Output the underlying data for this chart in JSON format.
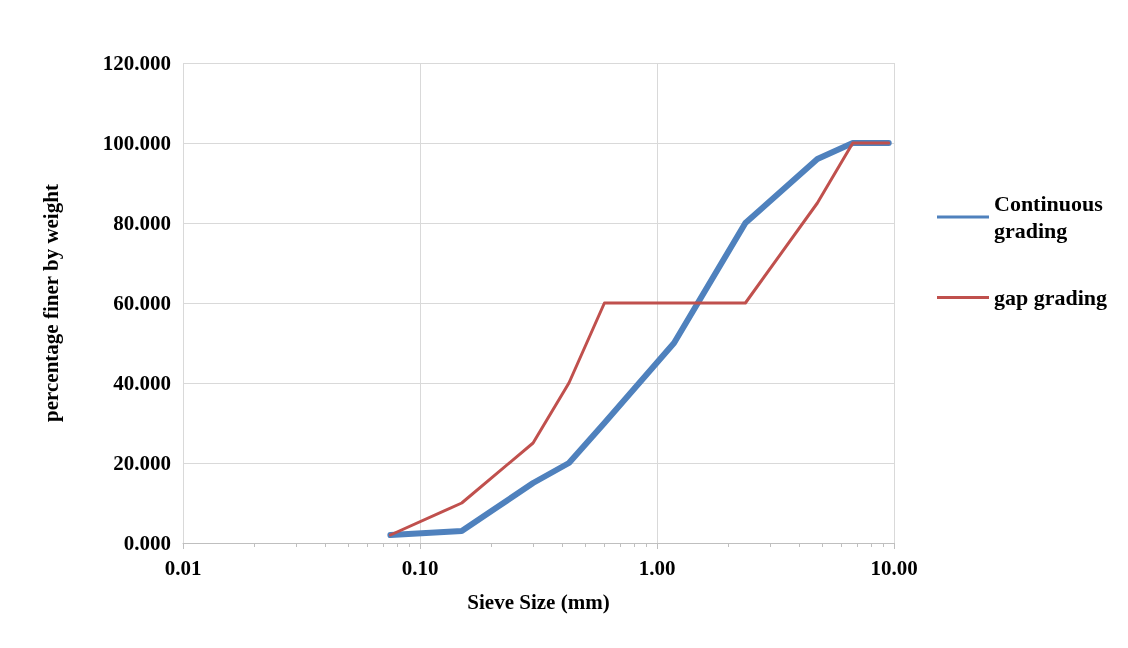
{
  "chart_data": {
    "type": "line",
    "xlabel": "Sieve Size (mm)",
    "ylabel": "percentage finer by weight",
    "log": "x",
    "xlim": [
      0.01,
      10
    ],
    "xticks": [
      {
        "value": 0.01,
        "label": "0.01"
      },
      {
        "value": 0.1,
        "label": "0.10"
      },
      {
        "value": 1,
        "label": "1.00"
      },
      {
        "value": 10,
        "label": "10.00"
      }
    ],
    "ylim": [
      0,
      120
    ],
    "yticks": [
      {
        "value": 0,
        "label": "0.000"
      },
      {
        "value": 20,
        "label": "20.000"
      },
      {
        "value": 40,
        "label": "40.000"
      },
      {
        "value": 60,
        "label": "60.000"
      },
      {
        "value": 80,
        "label": "80.000"
      },
      {
        "value": 100,
        "label": "100.000"
      },
      {
        "value": 120,
        "label": "120.000"
      }
    ],
    "x": [
      0.075,
      0.15,
      0.3,
      0.425,
      0.6,
      1.18,
      2.36,
      4.75,
      6.7,
      9.5
    ],
    "series": [
      {
        "name": "Continuous grading",
        "color": "#4f81bd",
        "values": [
          2,
          3,
          15,
          20,
          30,
          50,
          80,
          96,
          100,
          100
        ]
      },
      {
        "name": "gap grading",
        "color": "#c0504d",
        "values": [
          2,
          10,
          25,
          40,
          60,
          60,
          60,
          85,
          100,
          100
        ]
      }
    ],
    "grid": true,
    "legend": "right",
    "marker": "none",
    "line_style": "solid"
  }
}
